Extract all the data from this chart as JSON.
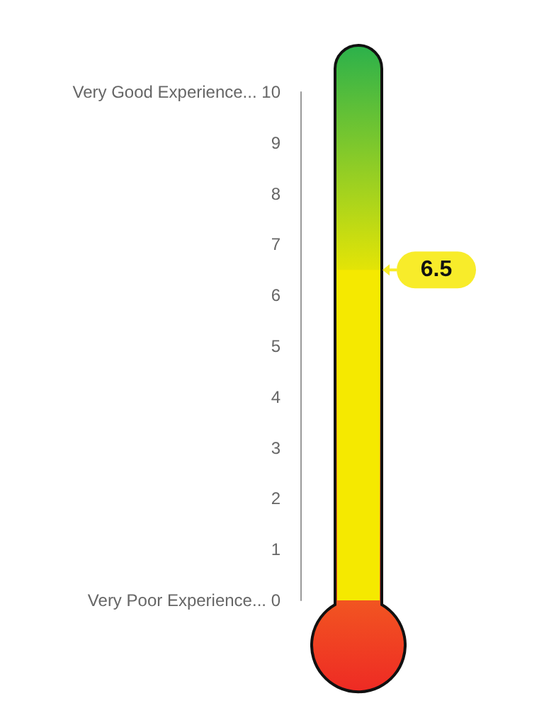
{
  "chart_data": {
    "type": "bar",
    "categories": [
      null
    ],
    "values": [
      6.5
    ],
    "color": "#f5e900",
    "data_labels": true,
    "ylim": [
      0,
      10
    ],
    "yticks": [
      {
        "value": 0,
        "label": "Very Poor Experience... 0"
      },
      1,
      2,
      3,
      4,
      5,
      6,
      7,
      8,
      9,
      {
        "value": 10,
        "label": "Very Good Experience... 10"
      }
    ],
    "tick_labels": "y",
    "grid": false
  }
}
